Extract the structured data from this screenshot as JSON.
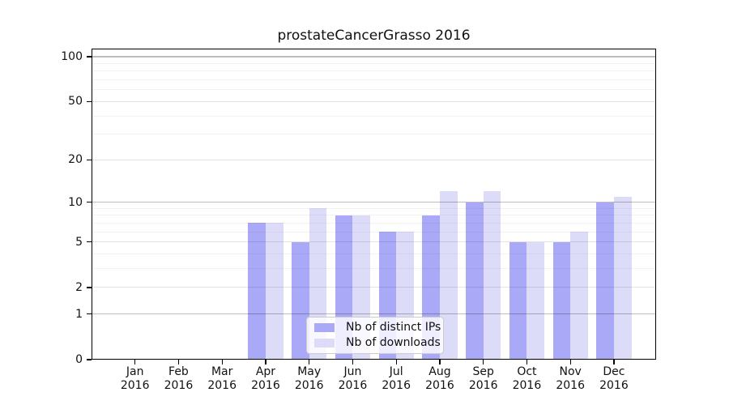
{
  "title": "prostateCancerGrasso 2016",
  "colors": {
    "ips": "#a9a9f8",
    "downloads": "#dcdcf9",
    "axis": "#000000",
    "grid_strong": "rgba(0,0,0,0.26)",
    "grid_mid": "rgba(0,0,0,0.11)",
    "grid_minor": "rgba(0,0,0,0.05)"
  },
  "legend": {
    "items": [
      {
        "label": "Nb of distinct IPs",
        "color_key": "ips"
      },
      {
        "label": "Nb of downloads",
        "color_key": "downloads"
      }
    ]
  },
  "chart_data": {
    "type": "bar",
    "scale": "log1p",
    "title": "prostateCancerGrasso 2016",
    "categories": [
      "Jan",
      "Feb",
      "Mar",
      "Apr",
      "May",
      "Jun",
      "Jul",
      "Aug",
      "Sep",
      "Oct",
      "Nov",
      "Dec"
    ],
    "category_year": "2016",
    "series": [
      {
        "name": "Nb of distinct IPs",
        "values": [
          0,
          0,
          0,
          7,
          5,
          8,
          6,
          8,
          10,
          5,
          5,
          10
        ]
      },
      {
        "name": "Nb of downloads",
        "values": [
          0,
          0,
          0,
          7,
          9,
          8,
          6,
          12,
          12,
          5,
          6,
          11
        ]
      }
    ],
    "yticks": [
      0,
      1,
      2,
      5,
      10,
      20,
      50,
      100
    ],
    "ytick_strong": [
      1,
      10,
      100
    ],
    "minor_gridlines": [
      3,
      4,
      6,
      7,
      8,
      9,
      30,
      40,
      60,
      70,
      80,
      90
    ],
    "ylim": [
      0,
      100
    ],
    "grid": true,
    "legend_position": "lower center"
  }
}
